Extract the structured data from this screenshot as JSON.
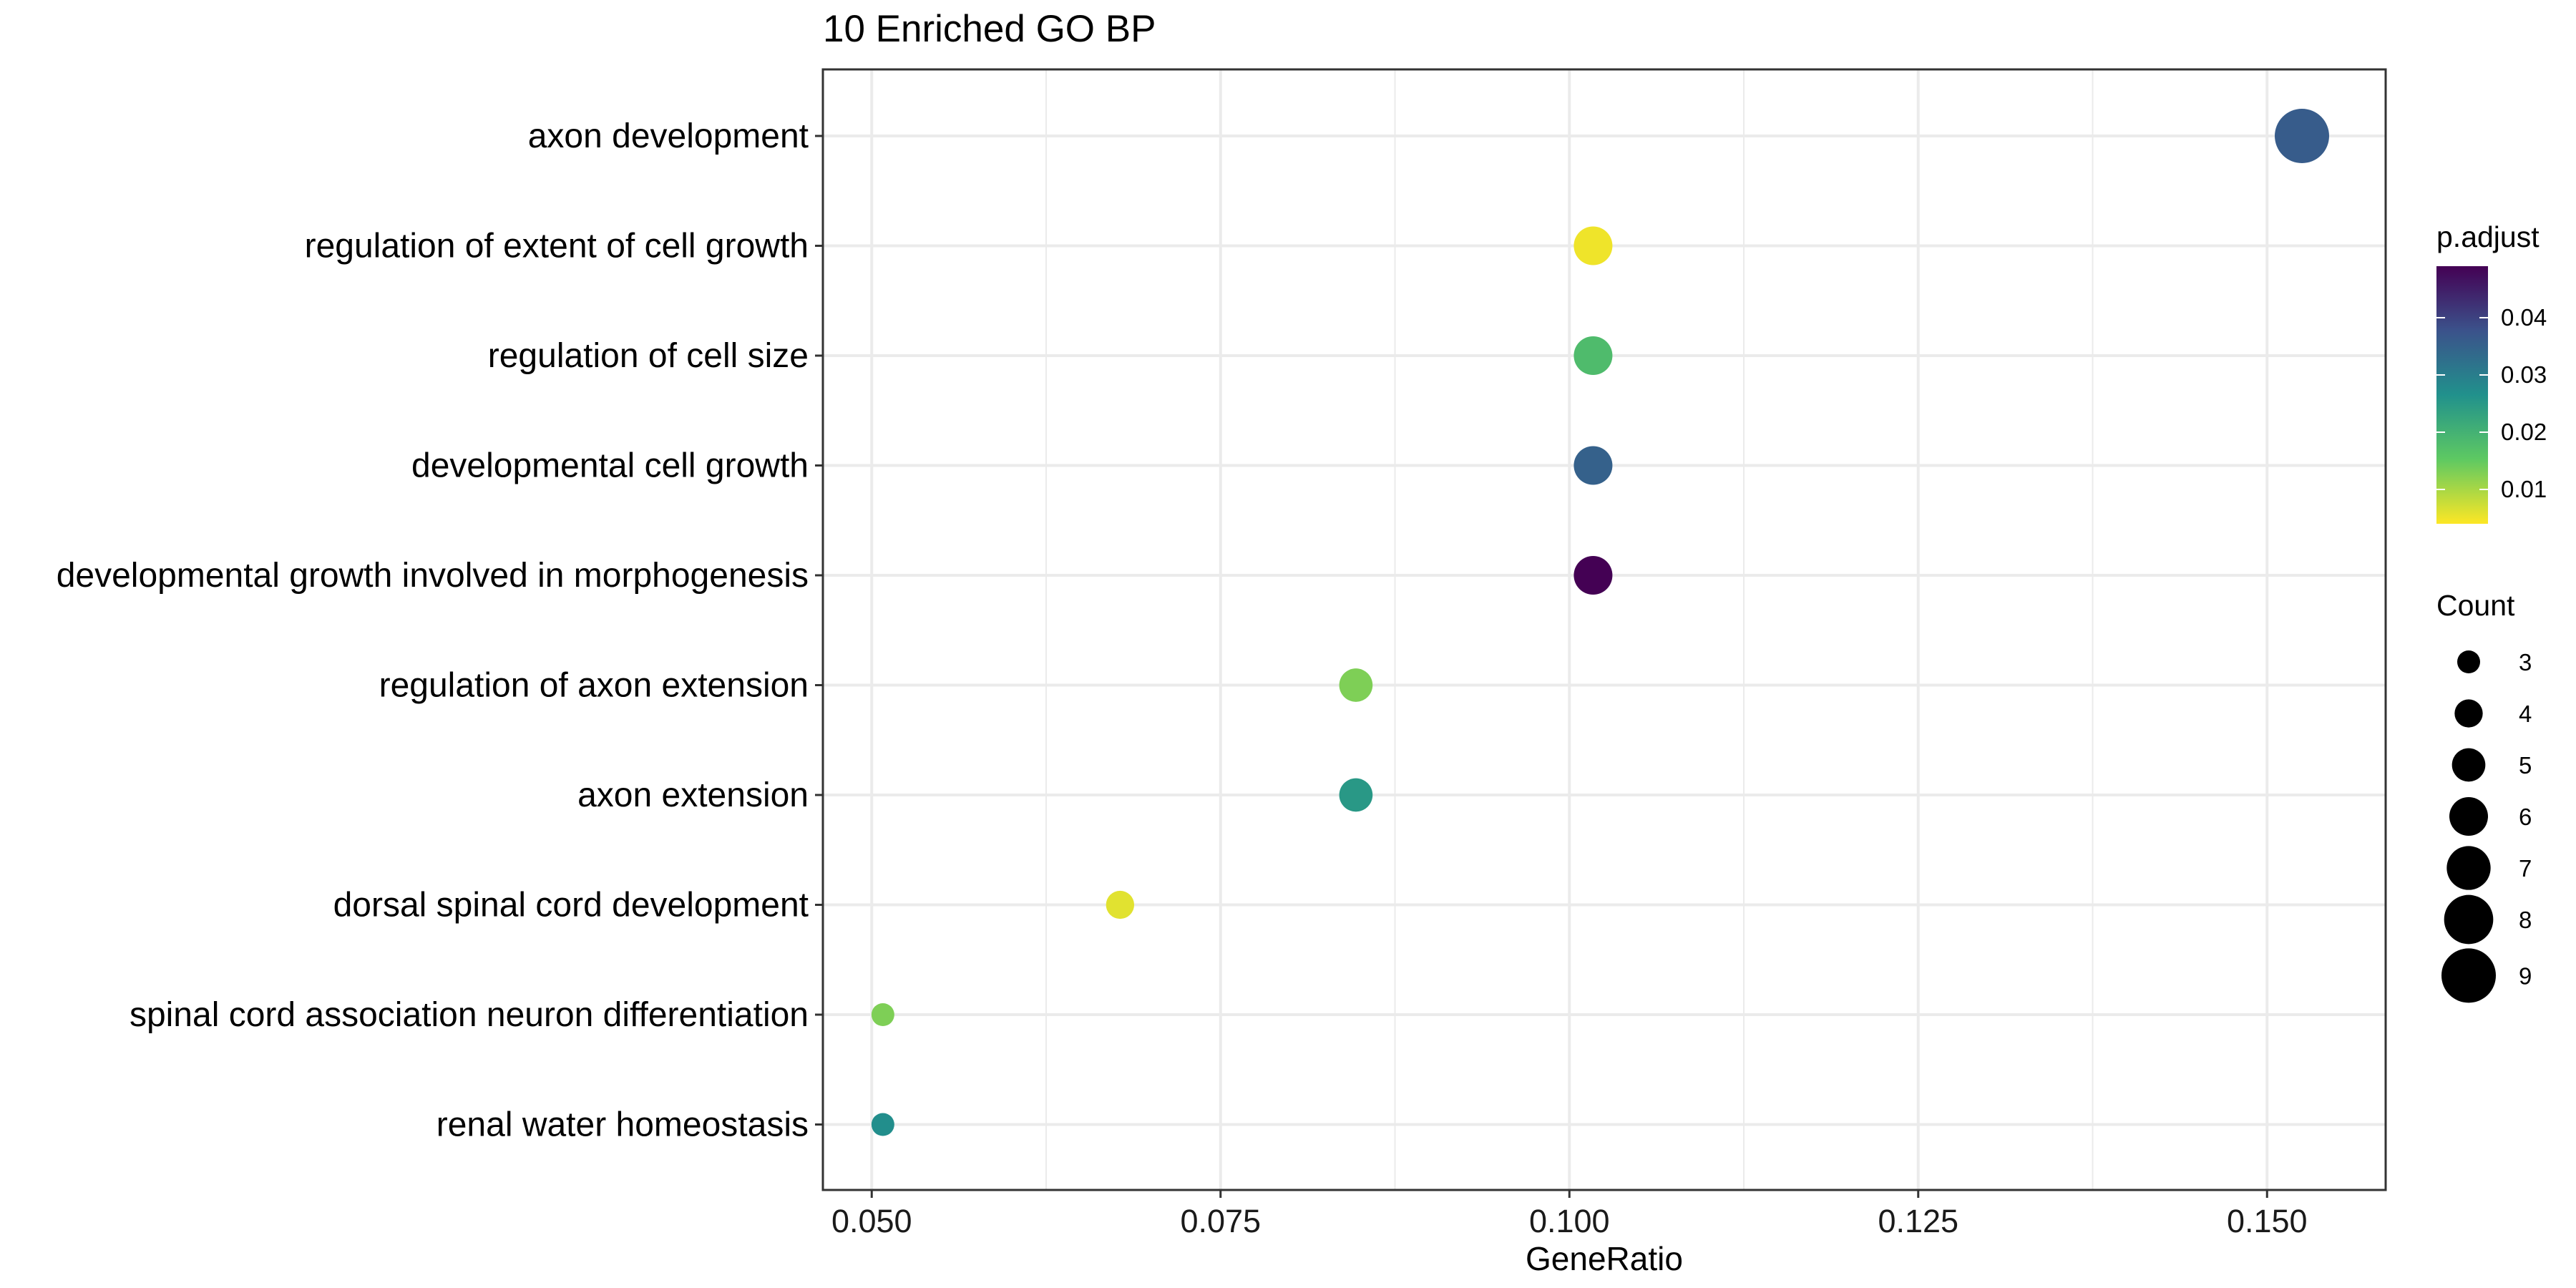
{
  "chart_data": {
    "type": "scatter",
    "title": "10 Enriched GO BP",
    "xlabel": "GeneRatio",
    "ylabel": "",
    "xlim": [
      0.0465,
      0.1585
    ],
    "x_ticks": [
      0.05,
      0.075,
      0.1,
      0.125,
      0.15
    ],
    "x_tick_labels": [
      "0.050",
      "0.075",
      "0.100",
      "0.125",
      "0.150"
    ],
    "grid": true,
    "categories": [
      "axon development",
      "regulation of extent of cell growth",
      "regulation of cell size",
      "developmental cell growth",
      "developmental growth involved in morphogenesis",
      "regulation of axon extension",
      "axon extension",
      "dorsal spinal cord development",
      "spinal cord association neuron differentiation",
      "renal water homeostasis"
    ],
    "points": [
      {
        "term": "axon development",
        "gene_ratio": 0.1525,
        "count": 9,
        "p_adjust": 0.036
      },
      {
        "term": "regulation of extent of cell growth",
        "gene_ratio": 0.1017,
        "count": 6,
        "p_adjust": 0.005
      },
      {
        "term": "regulation of cell size",
        "gene_ratio": 0.1017,
        "count": 6,
        "p_adjust": 0.018
      },
      {
        "term": "developmental cell growth",
        "gene_ratio": 0.1017,
        "count": 6,
        "p_adjust": 0.035
      },
      {
        "term": "developmental growth involved in morphogenesis",
        "gene_ratio": 0.1017,
        "count": 6,
        "p_adjust": 0.049
      },
      {
        "term": "regulation of axon extension",
        "gene_ratio": 0.0847,
        "count": 5,
        "p_adjust": 0.013
      },
      {
        "term": "axon extension",
        "gene_ratio": 0.0847,
        "count": 5,
        "p_adjust": 0.025
      },
      {
        "term": "dorsal spinal cord development",
        "gene_ratio": 0.0678,
        "count": 4,
        "p_adjust": 0.006
      },
      {
        "term": "spinal cord association neuron differentiation",
        "gene_ratio": 0.0508,
        "count": 3,
        "p_adjust": 0.013
      },
      {
        "term": "renal water homeostasis",
        "gene_ratio": 0.0508,
        "count": 3,
        "p_adjust": 0.027
      }
    ],
    "color_legend": {
      "title": "p.adjust",
      "range": [
        0.004,
        0.049
      ],
      "ticks": [
        0.01,
        0.02,
        0.03,
        0.04
      ],
      "tick_labels": [
        "0.01",
        "0.02",
        "0.03",
        "0.04"
      ],
      "palette": [
        "#fde725",
        "#5ec962",
        "#21918c",
        "#3b528b",
        "#440154"
      ]
    },
    "size_legend": {
      "title": "Count",
      "values": [
        3,
        4,
        5,
        6,
        7,
        8,
        9
      ],
      "labels": [
        "3",
        "4",
        "5",
        "6",
        "7",
        "8",
        "9"
      ]
    },
    "colors": {
      "panel_border": "#333333",
      "grid": "#ebebeb",
      "point_legend": "#000000"
    }
  }
}
